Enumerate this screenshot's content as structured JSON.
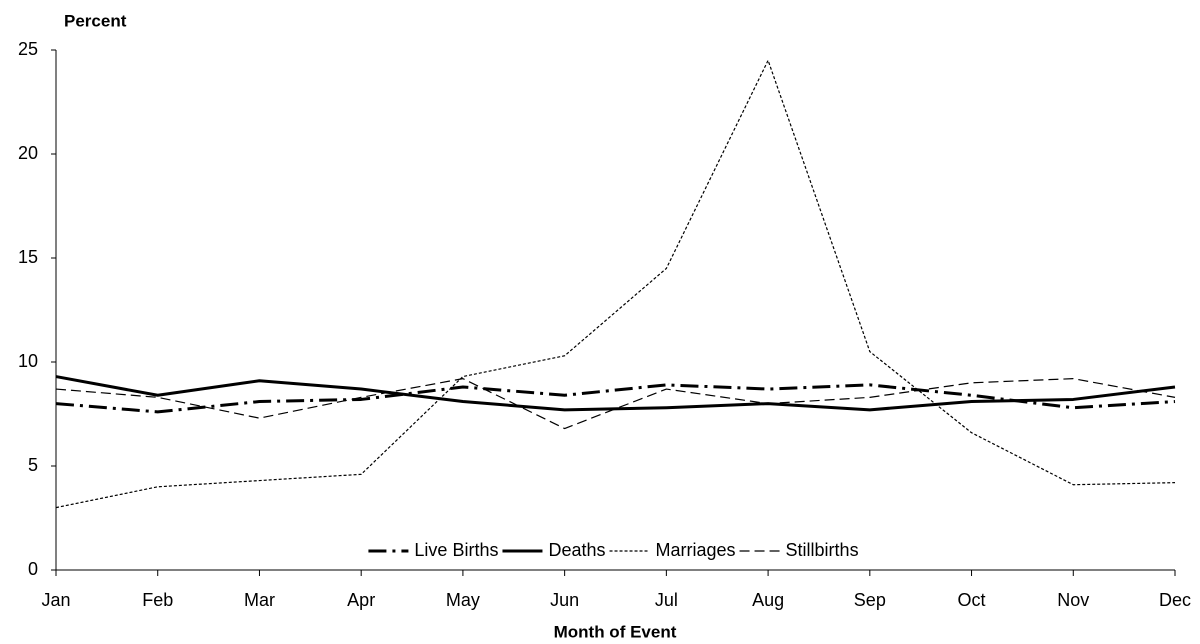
{
  "chart_data": {
    "type": "line",
    "y_label": "Percent",
    "x_label": "Month of Event",
    "categories": [
      "Jan",
      "Feb",
      "Mar",
      "Apr",
      "May",
      "Jun",
      "Jul",
      "Aug",
      "Sep",
      "Oct",
      "Nov",
      "Dec"
    ],
    "series": [
      {
        "name": "Live Births",
        "color": "#000000",
        "style": "dash-dot",
        "values": [
          8.0,
          7.6,
          8.1,
          8.2,
          8.8,
          8.4,
          8.9,
          8.7,
          8.9,
          8.4,
          7.8,
          8.1
        ]
      },
      {
        "name": "Deaths",
        "color": "#000000",
        "style": "solid",
        "values": [
          9.3,
          8.4,
          9.1,
          8.7,
          8.1,
          7.7,
          7.8,
          8.0,
          7.7,
          8.1,
          8.2,
          8.8
        ]
      },
      {
        "name": "Marriages",
        "color": "#000000",
        "style": "dotted",
        "values": [
          3.0,
          4.0,
          4.3,
          4.6,
          9.3,
          10.3,
          14.5,
          24.5,
          10.5,
          6.6,
          4.1,
          4.2
        ]
      },
      {
        "name": "Stillbirths",
        "color": "#000000",
        "style": "dashed",
        "values": [
          8.7,
          8.3,
          7.3,
          8.3,
          9.2,
          6.8,
          8.7,
          8.0,
          8.3,
          9.0,
          9.2,
          8.3
        ]
      }
    ],
    "ylim": [
      0,
      25
    ],
    "yticks": [
      0,
      5,
      10,
      15,
      20,
      25
    ],
    "grid": false,
    "legend": "lower center"
  }
}
